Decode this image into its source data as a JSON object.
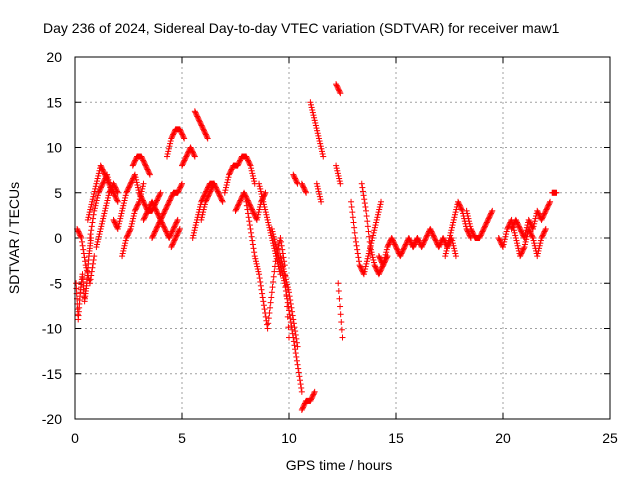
{
  "chart_data": {
    "type": "scatter",
    "title": "Day 236 of 2024, Sidereal Day-to-day VTEC variation (SDTVAR) for receiver maw1",
    "xlabel": "GPS time / hours",
    "ylabel": "SDTVAR / TECUs",
    "xlim": [
      0,
      25
    ],
    "ylim": [
      -20,
      20
    ],
    "x_ticks": [
      0,
      5,
      10,
      15,
      20,
      25
    ],
    "y_ticks": [
      -20,
      -15,
      -10,
      -5,
      0,
      5,
      10,
      15,
      20
    ],
    "x_tick_labels": [
      "0",
      "5",
      "10",
      "15",
      "20",
      "25"
    ],
    "y_tick_labels": [
      "-20",
      "-15",
      "-10",
      "-5",
      "0",
      "5",
      "10",
      "15",
      "20"
    ],
    "grid": true,
    "marker": "plus",
    "marker_color": "#ff0000",
    "series": [
      {
        "name": "SDTVAR",
        "tracks": [
          {
            "t": [
              0.05,
              0.15,
              0.25,
              0.35,
              0.45,
              0.55,
              0.65,
              0.75
            ],
            "y": [
              -5,
              -9,
              -6,
              -4,
              -7,
              -5,
              -2,
              0
            ]
          },
          {
            "t": [
              0.1,
              0.3,
              0.5,
              0.7,
              0.9
            ],
            "y": [
              1,
              0,
              -3,
              -5,
              -2
            ]
          },
          {
            "t": [
              0.6,
              0.8,
              1.0,
              1.2,
              1.4,
              1.6,
              1.8,
              2.0
            ],
            "y": [
              2,
              4,
              6,
              8,
              7,
              6,
              5,
              4
            ]
          },
          {
            "t": [
              0.7,
              0.9,
              1.1,
              1.3,
              1.5,
              1.7
            ],
            "y": [
              0,
              3,
              5,
              6,
              7,
              5
            ]
          },
          {
            "t": [
              1.0,
              1.2,
              1.4,
              1.6,
              1.8,
              2.0
            ],
            "y": [
              -1,
              1,
              3,
              5,
              6,
              5
            ]
          },
          {
            "t": [
              1.8,
              2.0,
              2.2,
              2.4,
              2.6,
              2.8,
              3.0,
              3.2,
              3.4,
              3.6,
              3.8,
              4.0
            ],
            "y": [
              2,
              1,
              3,
              5,
              6,
              7,
              5,
              4,
              3,
              3,
              4,
              5
            ]
          },
          {
            "t": [
              2.2,
              2.4,
              2.6,
              2.8,
              3.0,
              3.2
            ],
            "y": [
              -2,
              0,
              1,
              3,
              4,
              6
            ]
          },
          {
            "t": [
              2.7,
              2.9,
              3.1,
              3.3,
              3.5
            ],
            "y": [
              8,
              9,
              9,
              8,
              7
            ]
          },
          {
            "t": [
              3.2,
              3.4,
              3.6,
              3.8,
              4.0,
              4.2,
              4.4,
              4.6,
              4.8
            ],
            "y": [
              2,
              3,
              4,
              3,
              2,
              1,
              0,
              1,
              2
            ]
          },
          {
            "t": [
              3.6,
              3.8,
              4.0,
              4.2,
              4.4,
              4.6,
              4.8,
              5.0
            ],
            "y": [
              0,
              1,
              2,
              3,
              4,
              5,
              5,
              6
            ]
          },
          {
            "t": [
              4.3,
              4.5,
              4.7,
              4.9,
              5.1
            ],
            "y": [
              9,
              11,
              12,
              12,
              11
            ]
          },
          {
            "t": [
              4.5,
              4.7,
              4.9
            ],
            "y": [
              -1,
              0,
              1
            ]
          },
          {
            "t": [
              5.0,
              5.2,
              5.4,
              5.6
            ],
            "y": [
              8,
              9,
              10,
              9
            ]
          },
          {
            "t": [
              5.6,
              5.8,
              6.0,
              6.2
            ],
            "y": [
              14,
              13,
              12,
              11
            ]
          },
          {
            "t": [
              5.5,
              5.7,
              5.9,
              6.1,
              6.3,
              6.5,
              6.7,
              6.9
            ],
            "y": [
              0,
              2,
              4,
              5,
              6,
              6,
              5,
              4
            ]
          },
          {
            "t": [
              5.9,
              6.1,
              6.3,
              6.5
            ],
            "y": [
              2,
              4,
              5,
              6
            ]
          },
          {
            "t": [
              7.0,
              7.2,
              7.4,
              7.6,
              7.8,
              8.0,
              8.2,
              8.4
            ],
            "y": [
              5,
              7,
              8,
              8,
              9,
              9,
              8,
              6
            ]
          },
          {
            "t": [
              7.5,
              7.7,
              7.9,
              8.1,
              8.3,
              8.5,
              8.7,
              8.9
            ],
            "y": [
              3,
              4,
              5,
              4,
              3,
              2,
              4,
              5
            ]
          },
          {
            "t": [
              8.0,
              8.2,
              8.4,
              8.6,
              8.8,
              9.0,
              9.2,
              9.4,
              9.6,
              9.8,
              10.0
            ],
            "y": [
              4,
              1,
              -2,
              -4,
              -7,
              -10,
              -6,
              -2,
              0,
              -3,
              -11
            ]
          },
          {
            "t": [
              8.6,
              8.8,
              9.0,
              9.2,
              9.4,
              9.6
            ],
            "y": [
              6,
              4,
              2,
              0,
              -2,
              -4
            ]
          },
          {
            "t": [
              9.2,
              9.4,
              9.6,
              9.8,
              10.0,
              10.2,
              10.4,
              10.6
            ],
            "y": [
              1,
              -1,
              -3,
              -5,
              -8,
              -11,
              -14,
              -17
            ]
          },
          {
            "t": [
              9.6,
              9.8,
              10.0,
              10.2,
              10.4
            ],
            "y": [
              -2,
              -4,
              -6,
              -9,
              -12
            ]
          },
          {
            "t": [
              10.2,
              10.4
            ],
            "y": [
              7,
              6
            ]
          },
          {
            "t": [
              10.6,
              10.8,
              11.0,
              11.2
            ],
            "y": [
              -19,
              -18,
              -18,
              -17
            ]
          },
          {
            "t": [
              10.6,
              10.8
            ],
            "y": [
              6,
              5
            ]
          },
          {
            "t": [
              11.0,
              11.2,
              11.4,
              11.6
            ],
            "y": [
              15,
              13,
              11,
              9
            ]
          },
          {
            "t": [
              11.3,
              11.5
            ],
            "y": [
              6,
              4
            ]
          },
          {
            "t": [
              12.2,
              12.4
            ],
            "y": [
              17,
              16
            ]
          },
          {
            "t": [
              12.2,
              12.4
            ],
            "y": [
              8,
              6
            ]
          },
          {
            "t": [
              12.3,
              12.5
            ],
            "y": [
              -5,
              -11
            ]
          },
          {
            "t": [
              12.9,
              13.1,
              13.3,
              13.5,
              13.7,
              13.9,
              14.1,
              14.3
            ],
            "y": [
              4,
              0,
              -3,
              -4,
              -2,
              0,
              2,
              4
            ]
          },
          {
            "t": [
              13.4,
              13.6,
              13.8,
              14.0,
              14.2,
              14.4,
              14.6
            ],
            "y": [
              6,
              3,
              -1,
              -3,
              -4,
              -3,
              -2
            ]
          },
          {
            "t": [
              14.2,
              14.4,
              14.6,
              14.8,
              15.0,
              15.2,
              15.4,
              15.6,
              15.8,
              16.0
            ],
            "y": [
              -2,
              -3,
              -1,
              0,
              -1,
              -2,
              -1,
              0,
              -1,
              0
            ]
          },
          {
            "t": [
              15.8,
              16.0,
              16.2,
              16.4,
              16.6,
              16.8,
              17.0,
              17.2,
              17.4,
              17.6,
              17.8
            ],
            "y": [
              -1,
              0,
              -1,
              0,
              1,
              0,
              -1,
              0,
              -1,
              0,
              -2
            ]
          },
          {
            "t": [
              17.3,
              17.5,
              17.7,
              17.9,
              18.1,
              18.3,
              18.5
            ],
            "y": [
              -2,
              0,
              2,
              4,
              3,
              1,
              0
            ]
          },
          {
            "t": [
              18.3,
              18.5,
              18.7,
              18.9,
              19.1,
              19.3,
              19.5
            ],
            "y": [
              3,
              1,
              0,
              0,
              1,
              2,
              3
            ]
          },
          {
            "t": [
              19.8,
              20.0,
              20.2,
              20.4,
              20.6,
              20.8,
              21.0,
              21.2,
              21.4,
              21.6,
              21.8,
              22.0
            ],
            "y": [
              0,
              -1,
              1,
              2,
              0,
              -2,
              -1,
              1,
              0,
              -2,
              0,
              1
            ]
          },
          {
            "t": [
              20.4,
              20.6,
              20.8,
              21.0,
              21.2,
              21.4,
              21.6,
              21.8,
              22.0,
              22.2
            ],
            "y": [
              1,
              2,
              1,
              0,
              2,
              1,
              3,
              2,
              3,
              4
            ]
          },
          {
            "t": [
              22.3,
              22.5
            ],
            "y": [
              5,
              5
            ]
          }
        ]
      }
    ]
  }
}
